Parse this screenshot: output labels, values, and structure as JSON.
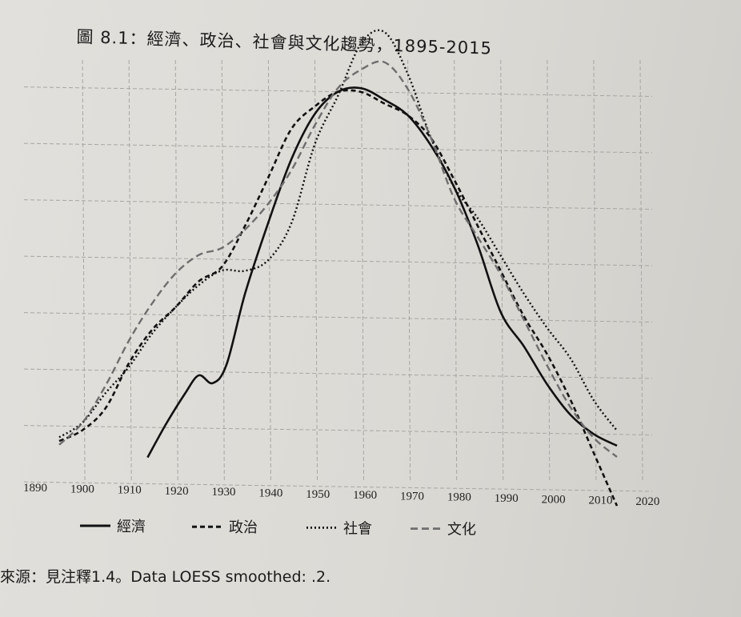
{
  "title": "圖 8.1：經濟、政治、社會與文化趨勢，1895-2015",
  "source_note": "來源：見注釋1.4。Data LOESS smoothed: .2.",
  "chart_data": {
    "type": "line",
    "title": "圖 8.1：經濟、政治、社會與文化趨勢，1895-2015",
    "xlabel": "",
    "ylabel": "",
    "xlim": [
      1890,
      2020
    ],
    "x_ticks": [
      "1890",
      "1900",
      "1910",
      "1920",
      "1930",
      "1940",
      "1950",
      "1960",
      "1970",
      "1980",
      "1990",
      "2000",
      "2010",
      "2020"
    ],
    "grid": true,
    "legend_position": "bottom",
    "series": [
      {
        "name": "經濟",
        "style": "solid",
        "color": "#111111",
        "x": [
          1914,
          1918,
          1922,
          1925,
          1928,
          1931,
          1935,
          1940,
          1945,
          1950,
          1955,
          1960,
          1965,
          1970,
          1975,
          1980,
          1985,
          1990,
          1995,
          2000,
          2005,
          2010,
          2015
        ],
        "y": [
          0.05,
          0.14,
          0.22,
          0.27,
          0.25,
          0.3,
          0.49,
          0.68,
          0.85,
          0.97,
          1.03,
          1.04,
          1.01,
          0.97,
          0.89,
          0.78,
          0.63,
          0.45,
          0.36,
          0.26,
          0.18,
          0.13,
          0.1
        ]
      },
      {
        "name": "政治",
        "style": "dashed",
        "color": "#111111",
        "x": [
          1895,
          1900,
          1905,
          1910,
          1915,
          1920,
          1925,
          1930,
          1935,
          1940,
          1945,
          1950,
          1955,
          1960,
          1965,
          1970,
          1975,
          1980,
          1985,
          1990,
          1995,
          2000,
          2005,
          2010,
          2015
        ],
        "y": [
          0.09,
          0.12,
          0.18,
          0.3,
          0.39,
          0.45,
          0.52,
          0.56,
          0.67,
          0.8,
          0.93,
          0.99,
          1.03,
          1.03,
          1.0,
          0.97,
          0.91,
          0.8,
          0.68,
          0.56,
          0.44,
          0.34,
          0.22,
          0.08,
          -0.06
        ]
      },
      {
        "name": "社會",
        "style": "dotted",
        "color": "#111111",
        "x": [
          1895,
          1900,
          1905,
          1910,
          1915,
          1920,
          1925,
          1930,
          1935,
          1940,
          1945,
          1950,
          1955,
          1960,
          1965,
          1970,
          1975,
          1980,
          1985,
          1990,
          1995,
          2000,
          2005,
          2010,
          2015
        ],
        "y": [
          0.1,
          0.14,
          0.22,
          0.29,
          0.38,
          0.45,
          0.51,
          0.55,
          0.55,
          0.58,
          0.68,
          0.89,
          1.02,
          1.16,
          1.19,
          1.08,
          0.91,
          0.78,
          0.7,
          0.6,
          0.5,
          0.41,
          0.33,
          0.22,
          0.14
        ]
      },
      {
        "name": "文化",
        "style": "dashed-light",
        "color": "#6e6e6e",
        "x": [
          1895,
          1900,
          1905,
          1910,
          1915,
          1920,
          1925,
          1930,
          1935,
          1940,
          1945,
          1950,
          1955,
          1960,
          1965,
          1970,
          1975,
          1980,
          1985,
          1990,
          1995,
          2000,
          2005,
          2010,
          2015
        ],
        "y": [
          0.08,
          0.14,
          0.24,
          0.36,
          0.46,
          0.54,
          0.59,
          0.61,
          0.66,
          0.73,
          0.82,
          0.94,
          1.04,
          1.09,
          1.11,
          1.04,
          0.91,
          0.75,
          0.65,
          0.55,
          0.43,
          0.31,
          0.2,
          0.12,
          0.07
        ]
      }
    ]
  }
}
